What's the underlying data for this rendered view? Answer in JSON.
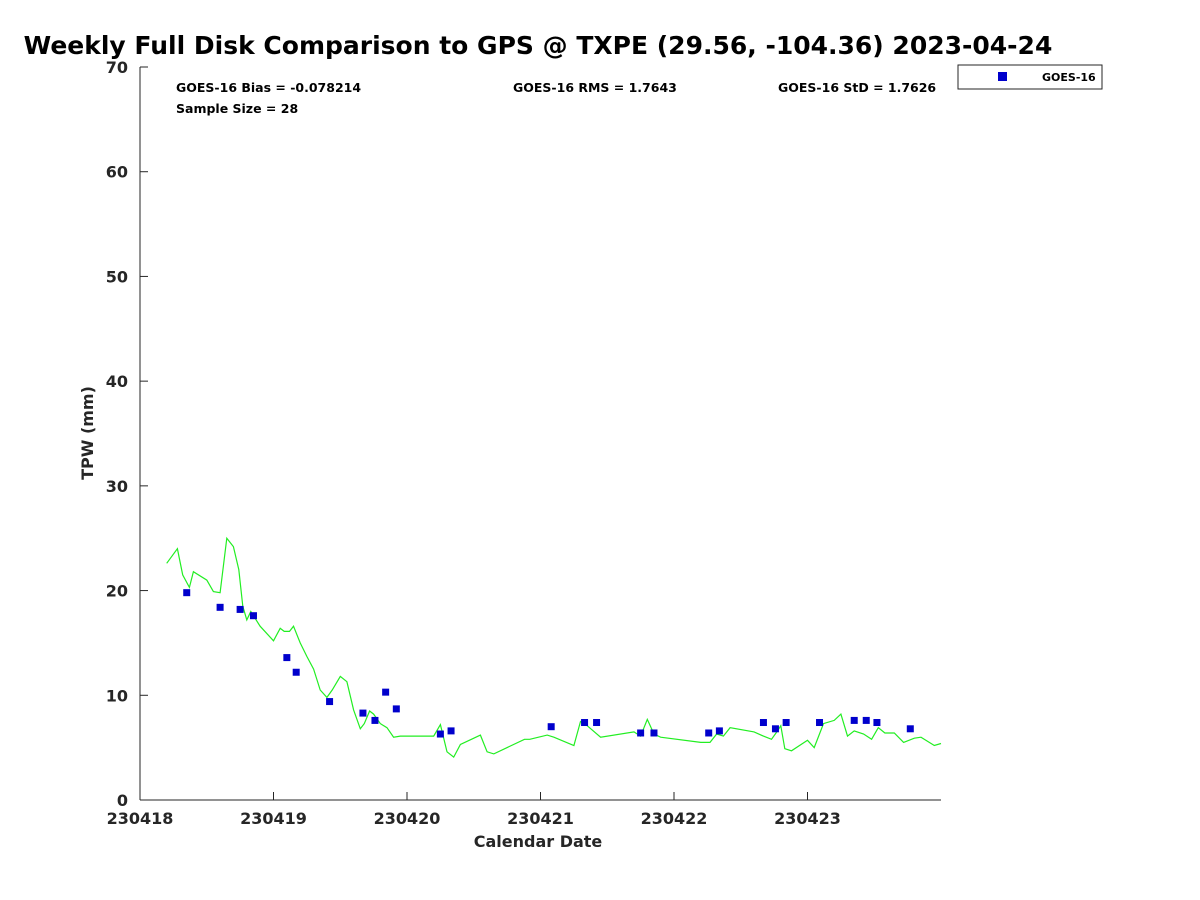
{
  "chart_data": {
    "type": "scatter",
    "title": "Weekly Full Disk Comparison to GPS @ TXPE (29.56, -104.36) 2023-04-24",
    "xlabel": "Calendar Date",
    "ylabel": "TPW (mm)",
    "xlim": [
      0,
      6
    ],
    "ylim": [
      0,
      70
    ],
    "x_ticks": [
      0,
      1,
      2,
      3,
      4,
      5
    ],
    "x_tick_labels": [
      "230418",
      "230419",
      "230420",
      "230421",
      "230422",
      "230423"
    ],
    "y_ticks": [
      0,
      10,
      20,
      30,
      40,
      50,
      60,
      70
    ],
    "y_tick_labels": [
      "0",
      "10",
      "20",
      "30",
      "40",
      "50",
      "60",
      "70"
    ],
    "grid": false,
    "legend": {
      "position": "top-right",
      "entries": [
        "GOES-16"
      ]
    },
    "stats": {
      "bias": "GOES-16 Bias = -0.078214",
      "rms": "GOES-16 RMS = 1.7643",
      "std": "GOES-16 StD = 1.7626",
      "sample_size": "Sample Size = 28"
    },
    "colors": {
      "goes": "#0000cc",
      "gps": "#22ee22",
      "axis": "#262626"
    },
    "series": [
      {
        "name": "GOES-16",
        "kind": "scatter",
        "x": [
          0.35,
          0.6,
          0.75,
          0.85,
          1.1,
          1.17,
          1.42,
          1.67,
          1.76,
          1.84,
          1.92,
          2.25,
          2.33,
          3.08,
          3.33,
          3.42,
          3.75,
          3.85,
          4.26,
          4.34,
          4.67,
          4.76,
          4.84,
          5.09,
          5.35,
          5.44,
          5.52,
          5.77
        ],
        "y": [
          19.8,
          18.4,
          18.2,
          17.6,
          13.6,
          12.2,
          9.4,
          8.3,
          7.6,
          10.3,
          8.7,
          6.3,
          6.6,
          7.0,
          7.4,
          7.4,
          6.4,
          6.4,
          6.4,
          6.6,
          7.4,
          6.8,
          7.4,
          7.4,
          7.6,
          7.6,
          7.4,
          6.8
        ]
      },
      {
        "name": "GPS",
        "kind": "line",
        "x": [
          0.2,
          0.28,
          0.32,
          0.37,
          0.4,
          0.5,
          0.55,
          0.6,
          0.65,
          0.7,
          0.74,
          0.77,
          0.8,
          0.83,
          0.86,
          0.9,
          1.0,
          1.05,
          1.08,
          1.12,
          1.15,
          1.2,
          1.25,
          1.3,
          1.35,
          1.4,
          1.44,
          1.5,
          1.55,
          1.6,
          1.65,
          1.68,
          1.72,
          1.75,
          1.8,
          1.85,
          1.9,
          1.95,
          2.0,
          2.2,
          2.25,
          2.3,
          2.35,
          2.4,
          2.5,
          2.55,
          2.6,
          2.65,
          2.88,
          2.92,
          3.05,
          3.1,
          3.25,
          3.3,
          3.35,
          3.45,
          3.7,
          3.75,
          3.8,
          3.85,
          3.9,
          4.2,
          4.27,
          4.32,
          4.37,
          4.42,
          4.6,
          4.67,
          4.73,
          4.77,
          4.8,
          4.83,
          4.88,
          5.0,
          5.05,
          5.12,
          5.2,
          5.25,
          5.3,
          5.35,
          5.42,
          5.48,
          5.53,
          5.58,
          5.65,
          5.72,
          5.8,
          5.85,
          5.95,
          6.0
        ],
        "y": [
          22.6,
          24.0,
          21.5,
          20.3,
          21.8,
          21.0,
          19.9,
          19.8,
          25.0,
          24.2,
          22.0,
          18.5,
          17.2,
          18.0,
          17.4,
          16.6,
          15.2,
          16.4,
          16.1,
          16.1,
          16.6,
          15.0,
          13.7,
          12.5,
          10.5,
          9.8,
          10.5,
          11.8,
          11.3,
          8.6,
          6.8,
          7.3,
          8.5,
          8.2,
          7.3,
          6.9,
          6.0,
          6.1,
          6.1,
          6.1,
          7.2,
          4.6,
          4.1,
          5.3,
          5.9,
          6.2,
          4.6,
          4.4,
          5.8,
          5.8,
          6.2,
          6.0,
          5.2,
          7.5,
          7.1,
          6.0,
          6.5,
          6.1,
          7.7,
          6.3,
          6.0,
          5.5,
          5.5,
          6.3,
          6.1,
          6.9,
          6.5,
          6.1,
          5.8,
          6.5,
          7.1,
          4.9,
          4.7,
          5.7,
          5.0,
          7.3,
          7.6,
          8.2,
          6.1,
          6.6,
          6.3,
          5.8,
          6.9,
          6.4,
          6.4,
          5.5,
          5.9,
          6.0,
          5.2,
          5.4
        ]
      }
    ]
  }
}
